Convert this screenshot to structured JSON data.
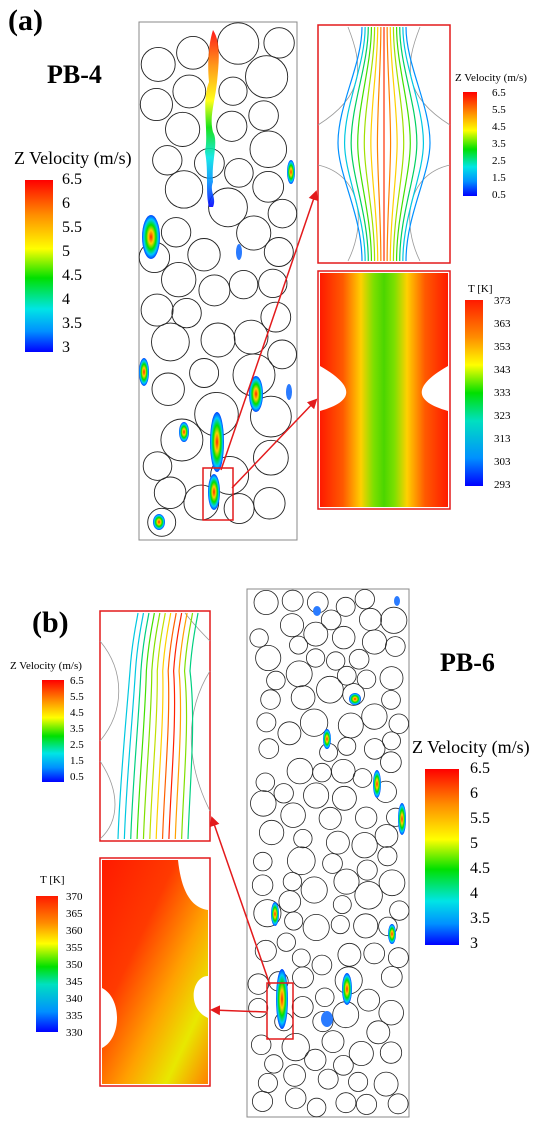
{
  "panels": [
    {
      "label": "(a)",
      "case_name": "PB-4",
      "main_colorbar": {
        "title": "Z Velocity (m/s)",
        "ticks": [
          "6.5",
          "6",
          "5.5",
          "5",
          "4.5",
          "4",
          "3.5",
          "3"
        ]
      },
      "streamline_inset_colorbar": {
        "title": "Z Velocity (m/s)",
        "ticks": [
          "6.5",
          "5.5",
          "4.5",
          "3.5",
          "2.5",
          "1.5",
          "0.5"
        ]
      },
      "temperature_inset_colorbar": {
        "title": "T [K]",
        "ticks": [
          "373",
          "363",
          "353",
          "343",
          "333",
          "323",
          "313",
          "303",
          "293"
        ]
      }
    },
    {
      "label": "(b)",
      "case_name": "PB-6",
      "main_colorbar": {
        "title": "Z Velocity (m/s)",
        "ticks": [
          "6.5",
          "6",
          "5.5",
          "5",
          "4.5",
          "4",
          "3.5",
          "3"
        ]
      },
      "streamline_inset_colorbar": {
        "title": "Z Velocity (m/s)",
        "ticks": [
          "6.5",
          "5.5",
          "4.5",
          "3.5",
          "2.5",
          "1.5",
          "0.5"
        ]
      },
      "temperature_inset_colorbar": {
        "title": "T [K]",
        "ticks": [
          "370",
          "365",
          "360",
          "355",
          "350",
          "345",
          "340",
          "335",
          "330"
        ]
      }
    }
  ],
  "colors": {
    "highlight_box": "#e31a1c",
    "arrow": "#e31a1c",
    "jet": [
      "#ff0000",
      "#ff8000",
      "#ffff00",
      "#00ff00",
      "#00ffff",
      "#0080ff",
      "#0000ff"
    ]
  }
}
